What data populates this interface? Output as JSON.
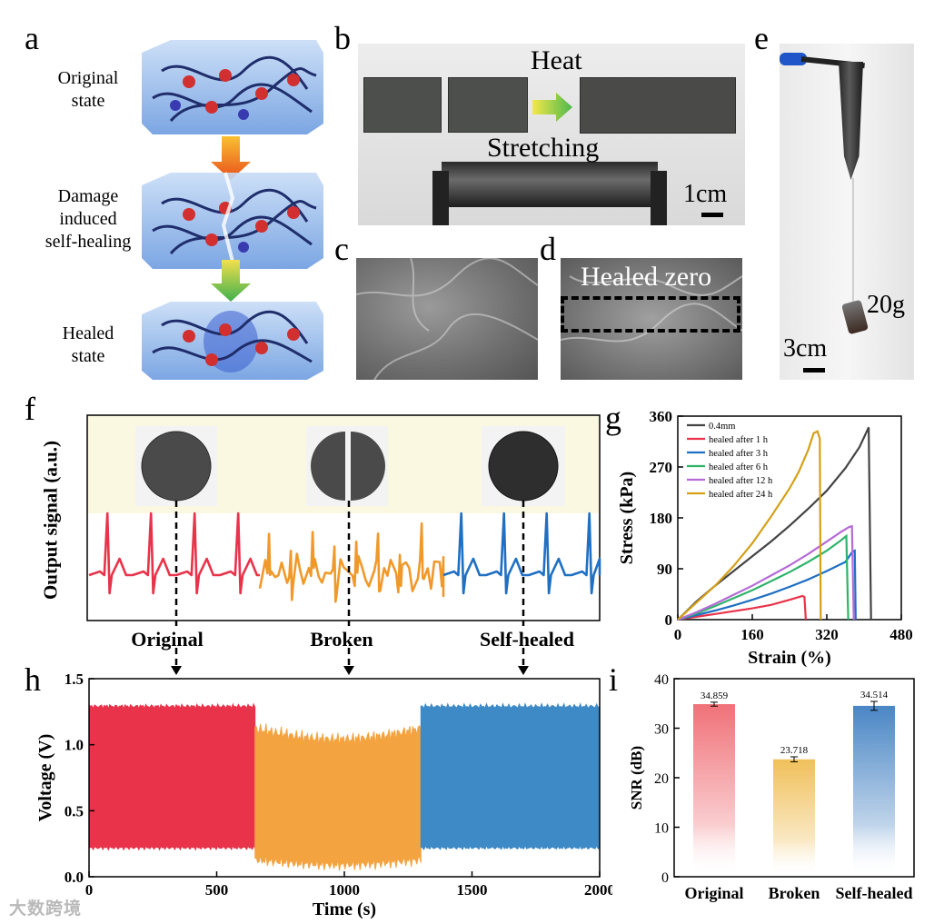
{
  "panel_labels": {
    "a": "a",
    "b": "b",
    "c": "c",
    "d": "d",
    "e": "e",
    "f": "f",
    "g": "g",
    "h": "h",
    "i": "i"
  },
  "panel_a": {
    "stages": [
      "Original\nstate",
      "Damage\ninduced\nself-healing",
      "Healed\nstate"
    ],
    "colors": {
      "hydrogel": "#8fb6ea",
      "arrow_top": "#f9b233",
      "arrow_bottom_top": "#e94e1b",
      "arrow2_top": "#f4e04d",
      "arrow2_bottom": "#4caf50"
    }
  },
  "panel_b": {
    "heat_label": "Heat",
    "stretch_label": "Stretching",
    "scale_label": "1cm"
  },
  "panel_d": {
    "healed_label": "Healed zero"
  },
  "panel_e": {
    "weight_label": "20g",
    "scale_label": "3cm"
  },
  "panel_f": {
    "ylabel": "Output signal (a.u.)",
    "states": [
      "Original",
      "Broken",
      "Self-healed"
    ],
    "colors": {
      "original": "#e8334a",
      "broken": "#f0992a",
      "healed": "#1f6fc3",
      "band": "#fbf8e1"
    }
  },
  "chart_data": [
    {
      "id": "g",
      "type": "line",
      "xlabel": "Strain (%)",
      "ylabel": "Stress (kPa)",
      "xlim": [
        0,
        480
      ],
      "ylim": [
        0,
        360
      ],
      "xticks": [
        0,
        160,
        320,
        480
      ],
      "yticks": [
        0,
        90,
        180,
        270,
        360
      ],
      "series": [
        {
          "name": "0.4mm",
          "color": "#444444",
          "x": [
            0,
            40,
            80,
            120,
            160,
            200,
            240,
            280,
            320,
            360,
            390,
            410,
            415
          ],
          "y": [
            0,
            32,
            60,
            86,
            112,
            138,
            166,
            196,
            228,
            268,
            305,
            340,
            0
          ]
        },
        {
          "name": "healed after 1 h",
          "color": "#e8334a",
          "x": [
            0,
            40,
            80,
            120,
            160,
            200,
            240,
            268,
            272,
            275
          ],
          "y": [
            0,
            5,
            10,
            15,
            20,
            26,
            35,
            42,
            40,
            0
          ]
        },
        {
          "name": "healed after 3 h",
          "color": "#1f6fc3",
          "x": [
            0,
            40,
            80,
            120,
            160,
            200,
            240,
            280,
            320,
            360,
            375,
            380,
            382
          ],
          "y": [
            0,
            8,
            16,
            25,
            35,
            46,
            58,
            71,
            86,
            102,
            120,
            122,
            0
          ]
        },
        {
          "name": "healed after 6 h",
          "color": "#2fb36b",
          "x": [
            0,
            40,
            80,
            120,
            160,
            200,
            240,
            280,
            320,
            350,
            362,
            366
          ],
          "y": [
            0,
            11,
            24,
            38,
            52,
            68,
            84,
            102,
            122,
            140,
            148,
            0
          ]
        },
        {
          "name": "healed after 12 h",
          "color": "#b56bd6",
          "x": [
            0,
            40,
            80,
            120,
            160,
            200,
            240,
            280,
            320,
            350,
            368,
            374,
            378
          ],
          "y": [
            0,
            13,
            28,
            44,
            60,
            78,
            96,
            116,
            138,
            155,
            164,
            165,
            0
          ]
        },
        {
          "name": "healed after 24 h",
          "color": "#d4a017",
          "x": [
            0,
            40,
            80,
            120,
            160,
            200,
            240,
            260,
            280,
            292,
            300,
            305,
            307
          ],
          "y": [
            0,
            30,
            60,
            95,
            135,
            182,
            232,
            262,
            300,
            330,
            333,
            320,
            0
          ]
        }
      ]
    },
    {
      "id": "h",
      "type": "area",
      "xlabel": "Time (s)",
      "ylabel": "Voltage (V)",
      "xlim": [
        0,
        2000
      ],
      "ylim": [
        0.0,
        1.5
      ],
      "xticks": [
        0,
        500,
        1000,
        1500,
        2000
      ],
      "yticks": [
        "0.0",
        "0.5",
        "1.0",
        "1.5"
      ],
      "series": [
        {
          "name": "Original",
          "color": "#e8334a",
          "x": [
            0,
            650
          ],
          "upper": 1.29,
          "lower": 0.22
        },
        {
          "name": "Broken",
          "color": "#f3a440",
          "x": [
            650,
            1300
          ],
          "upper": 1.12,
          "lower": 0.13
        },
        {
          "name": "Self-healed",
          "color": "#3e8ac6",
          "x": [
            1300,
            2000
          ],
          "upper": 1.29,
          "lower": 0.22
        }
      ]
    },
    {
      "id": "i",
      "type": "bar",
      "ylabel": "SNR (dB)",
      "ylim": [
        0,
        40
      ],
      "yticks": [
        0,
        10,
        20,
        30,
        40
      ],
      "categories": [
        "Original",
        "Broken",
        "Self-healed"
      ],
      "values": [
        34.859,
        23.718,
        34.514
      ],
      "value_labels": [
        "34.859",
        "23.718",
        "34.514"
      ],
      "errors": [
        0.4,
        0.5,
        0.9
      ],
      "colors": [
        "#f07178",
        "#f0c05a",
        "#4a86c5"
      ]
    }
  ],
  "watermark": "大数跨境"
}
